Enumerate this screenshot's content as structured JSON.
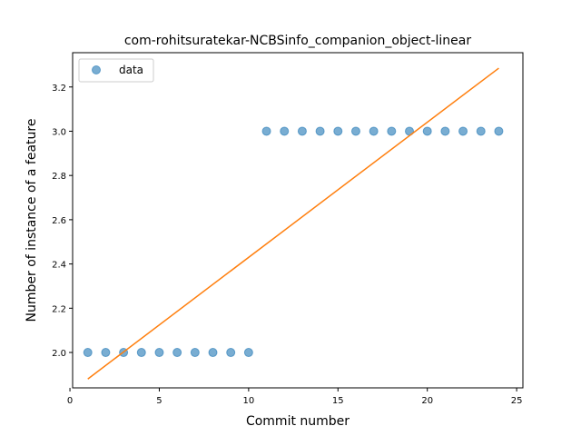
{
  "chart_data": {
    "type": "scatter",
    "title": "com-rohitsuratekar-NCBSinfo_companion_object-linear",
    "xlabel": "Commit number",
    "ylabel": "Number of instance of a feature",
    "xlim": [
      0.15,
      25.35
    ],
    "ylim": [
      1.84,
      3.355
    ],
    "xticks": [
      0,
      5,
      10,
      15,
      20,
      25
    ],
    "yticks": [
      2.0,
      2.2,
      2.4,
      2.6,
      2.8,
      3.0,
      3.2
    ],
    "grid": false,
    "legend_position": "top-left",
    "series": [
      {
        "name": "data",
        "kind": "scatter",
        "color": "#1f77b4",
        "x": [
          1,
          2,
          3,
          4,
          5,
          6,
          7,
          8,
          9,
          10,
          11,
          12,
          13,
          14,
          15,
          16,
          17,
          18,
          19,
          20,
          21,
          22,
          23,
          24
        ],
        "y": [
          2,
          2,
          2,
          2,
          2,
          2,
          2,
          2,
          2,
          2,
          3,
          3,
          3,
          3,
          3,
          3,
          3,
          3,
          3,
          3,
          3,
          3,
          3,
          3
        ]
      },
      {
        "kind": "line",
        "color": "#ff7f0e",
        "x": [
          1,
          24
        ],
        "y": [
          1.88,
          3.285
        ]
      }
    ]
  }
}
